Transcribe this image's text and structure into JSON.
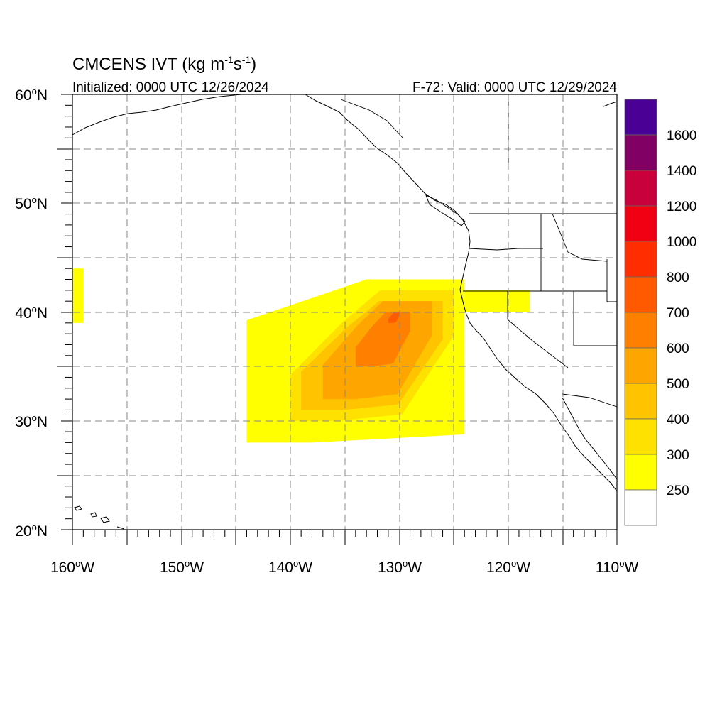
{
  "title": {
    "main": "CMCENS IVT (kg m",
    "exp1": "-1",
    "mid": "s",
    "exp2": "-1",
    "close": ")"
  },
  "subtitle_left": "Initialized: 0000 UTC 12/26/2024",
  "subtitle_right": "F-72: Valid: 0000 UTC 12/29/2024",
  "map": {
    "lon_range": [
      -160,
      -110
    ],
    "lat_range": [
      20,
      60
    ],
    "lat_labels": [
      "60",
      "50",
      "40",
      "30",
      "20"
    ],
    "lat_suffix": "N",
    "lon_labels": [
      "160",
      "150",
      "140",
      "130",
      "120",
      "110"
    ],
    "lon_suffix": "W",
    "degree_symbol": "o",
    "gridlines": "dashed gray every 5 degrees",
    "ivt_field": [
      {
        "level": 250,
        "color": "#ffff00",
        "lon_start": -144,
        "lon_end": -124,
        "lat_start": 28,
        "lat_end": 43
      },
      {
        "level": 250,
        "color": "#ffff00",
        "lon_start": -124,
        "lon_end": -118,
        "lat_start": 40,
        "lat_end": 42
      },
      {
        "level": 250,
        "color": "#ffff00",
        "lon_start": -160,
        "lon_end": -159,
        "lat_start": 39,
        "lat_end": 44
      },
      {
        "level": 300,
        "color": "#ffe100",
        "lon_start": -140,
        "lon_end": -125,
        "lat_start": 30,
        "lat_end": 42
      },
      {
        "level": 400,
        "color": "#ffc300",
        "lon_start": -139,
        "lon_end": -126,
        "lat_start": 31,
        "lat_end": 41
      },
      {
        "level": 500,
        "color": "#ffa500",
        "lon_start": -137,
        "lon_end": -127,
        "lat_start": 32,
        "lat_end": 41
      },
      {
        "level": 600,
        "color": "#ff7f00",
        "lon_start": -134,
        "lon_end": -129,
        "lat_start": 35,
        "lat_end": 40
      },
      {
        "level": 700,
        "color": "#ff5a00",
        "lon_start": -131,
        "lon_end": -130,
        "lat_start": 39,
        "lat_end": 40
      }
    ]
  },
  "colorbar": {
    "colors": [
      "#4b0095",
      "#800064",
      "#c8003c",
      "#f00012",
      "#ff2d00",
      "#ff5a00",
      "#ff7f00",
      "#ffa500",
      "#ffc300",
      "#ffe100",
      "#ffff00",
      "#ffffff"
    ],
    "labels": [
      "1600",
      "1400",
      "1200",
      "1000",
      "800",
      "700",
      "600",
      "500",
      "400",
      "300",
      "250"
    ]
  }
}
